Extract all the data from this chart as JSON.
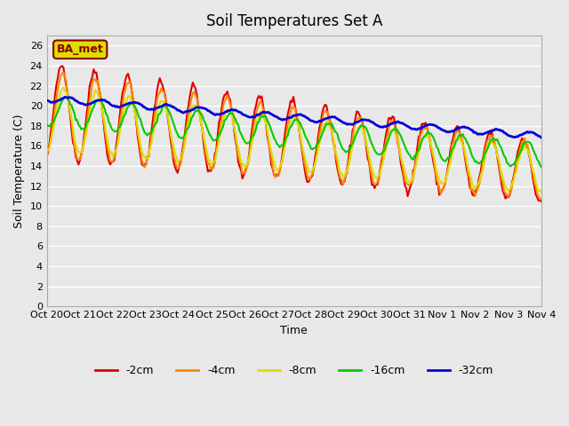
{
  "title": "Soil Temperatures Set A",
  "xlabel": "Time",
  "ylabel": "Soil Temperature (C)",
  "ylim": [
    0,
    27
  ],
  "yticks": [
    0,
    2,
    4,
    6,
    8,
    10,
    12,
    14,
    16,
    18,
    20,
    22,
    24,
    26
  ],
  "xtick_labels": [
    "Oct 20",
    "Oct 21",
    "Oct 22",
    "Oct 23",
    "Oct 24",
    "Oct 25",
    "Oct 26",
    "Oct 27",
    "Oct 28",
    "Oct 29",
    "Oct 30",
    "Oct 31",
    "Nov 1",
    "Nov 2",
    "Nov 3",
    "Nov 4"
  ],
  "series": {
    "-2cm": {
      "color": "#dd0000",
      "lw": 1.5
    },
    "-4cm": {
      "color": "#ff8800",
      "lw": 1.5
    },
    "-8cm": {
      "color": "#dddd00",
      "lw": 1.5
    },
    "-16cm": {
      "color": "#00cc00",
      "lw": 1.5
    },
    "-32cm": {
      "color": "#0000dd",
      "lw": 2.0
    }
  },
  "legend_label": "BA_met",
  "background_color": "#e8e8e8",
  "grid_color": "#ffffff",
  "n_days": 15,
  "points_per_day": 24
}
